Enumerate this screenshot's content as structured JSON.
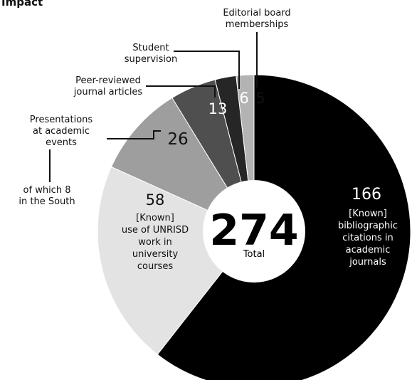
{
  "chart_data": {
    "type": "pie",
    "title": "Impact",
    "center": {
      "value": "274",
      "label": "Total"
    },
    "slices": [
      {
        "value": 166,
        "value_label": "166",
        "label_lines": [
          "[Known]",
          "bibliographic",
          "citations in",
          "academic",
          "journals"
        ],
        "color": "#000000",
        "value_color": "#ffffff"
      },
      {
        "value": 58,
        "value_label": "58",
        "label_lines": [
          "[Known]",
          "use of UNRISD",
          "work in",
          "university",
          "courses"
        ],
        "color": "#e3e3e3",
        "value_color": "#111111"
      },
      {
        "value": 26,
        "value_label": "26",
        "label_lines": [
          "Presentations",
          "at academic",
          "events"
        ],
        "note_lines": [
          "of which 8",
          "in the South"
        ],
        "color": "#9e9e9e",
        "value_color": "#111111"
      },
      {
        "value": 13,
        "value_label": "13",
        "label_lines": [
          "Peer-reviewed",
          "journal articles"
        ],
        "color": "#4f4f4f",
        "value_color": "#ffffff"
      },
      {
        "value": 6,
        "value_label": "6",
        "label_lines": [
          "Student",
          "supervision"
        ],
        "color": "#262626",
        "value_color": "#ffffff"
      },
      {
        "value": 5,
        "value_label": "5",
        "label_lines": [
          "Editorial board",
          "memberships"
        ],
        "color": "#b3b3b3",
        "value_color": "#111111"
      }
    ]
  }
}
